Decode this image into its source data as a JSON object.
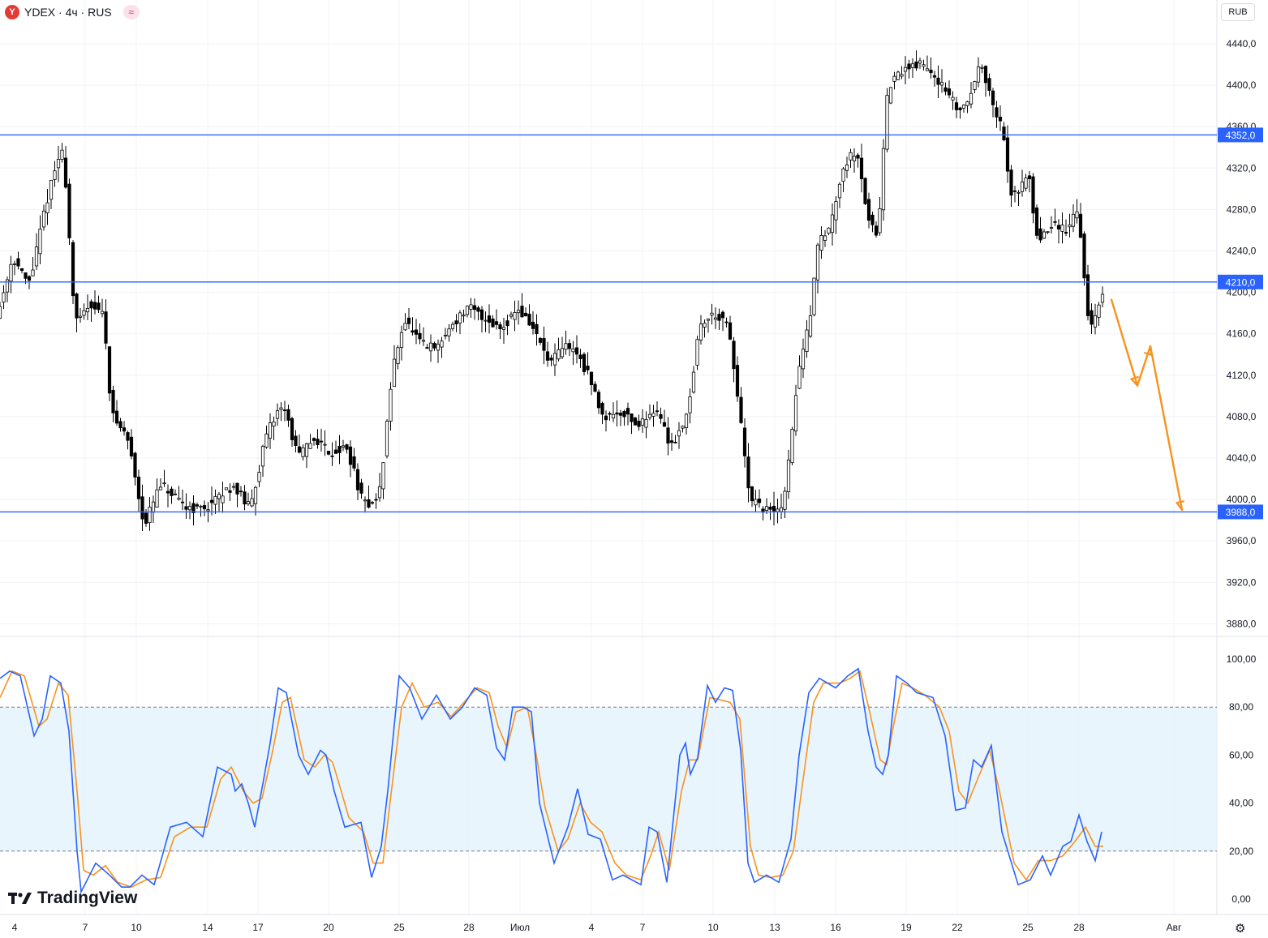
{
  "header": {
    "symbol_icon": "Y",
    "title": "YDEX · 4ч · RUS",
    "badge_icon": "≈"
  },
  "currency_button": "RUB",
  "brand": {
    "logo_icon": "tradingview-logo-icon",
    "name": "TradingView"
  },
  "settings_icon": "⚙",
  "colors": {
    "up": "#ffffff",
    "down": "#000000",
    "level_line": "#2962ff",
    "forecast": "#f7931e",
    "stoch_k": "#2962ff",
    "stoch_d": "#f7931e",
    "band_fill": "#e3f2fd"
  },
  "chart_data": {
    "type": "candlestick",
    "price_axis": {
      "ticks": [
        "4440,0",
        "4400,0",
        "4360,0",
        "4320,0",
        "4280,0",
        "4240,0",
        "4200,0",
        "4160,0",
        "4120,0",
        "4080,0",
        "4040,0",
        "4000,0",
        "3960,0",
        "3920,0",
        "3880,0"
      ],
      "range": [
        3870,
        4470
      ]
    },
    "levels": [
      {
        "price": 4352,
        "label": "4352,0"
      },
      {
        "price": 4210,
        "label": "4210,0"
      },
      {
        "price": 3988,
        "label": "3988,0"
      }
    ],
    "x_labels": [
      "4",
      "7",
      "10",
      "14",
      "17",
      "20",
      "25",
      "28",
      "Июл",
      "4",
      "7",
      "10",
      "13",
      "16",
      "19",
      "22",
      "25",
      "28",
      "Авг"
    ],
    "anchors": [
      [
        0,
        4180
      ],
      [
        18,
        4235
      ],
      [
        38,
        4205
      ],
      [
        60,
        4290
      ],
      [
        80,
        4345
      ],
      [
        95,
        4165
      ],
      [
        112,
        4190
      ],
      [
        130,
        4180
      ],
      [
        140,
        4080
      ],
      [
        160,
        4060
      ],
      [
        180,
        3975
      ],
      [
        200,
        4015
      ],
      [
        225,
        3995
      ],
      [
        250,
        3990
      ],
      [
        270,
        4000
      ],
      [
        290,
        4015
      ],
      [
        310,
        3990
      ],
      [
        330,
        4060
      ],
      [
        350,
        4095
      ],
      [
        370,
        4040
      ],
      [
        390,
        4060
      ],
      [
        410,
        4045
      ],
      [
        430,
        4050
      ],
      [
        450,
        3995
      ],
      [
        470,
        4000
      ],
      [
        485,
        4120
      ],
      [
        500,
        4175
      ],
      [
        520,
        4150
      ],
      [
        540,
        4145
      ],
      [
        560,
        4170
      ],
      [
        580,
        4185
      ],
      [
        600,
        4175
      ],
      [
        620,
        4165
      ],
      [
        640,
        4185
      ],
      [
        660,
        4165
      ],
      [
        680,
        4130
      ],
      [
        700,
        4150
      ],
      [
        715,
        4140
      ],
      [
        730,
        4115
      ],
      [
        745,
        4080
      ],
      [
        770,
        4085
      ],
      [
        790,
        4070
      ],
      [
        810,
        4090
      ],
      [
        830,
        4050
      ],
      [
        850,
        4085
      ],
      [
        865,
        4170
      ],
      [
        885,
        4180
      ],
      [
        900,
        4165
      ],
      [
        915,
        4080
      ],
      [
        925,
        4000
      ],
      [
        945,
        3990
      ],
      [
        965,
        3988
      ],
      [
        975,
        4035
      ],
      [
        985,
        4120
      ],
      [
        1000,
        4170
      ],
      [
        1010,
        4250
      ],
      [
        1025,
        4260
      ],
      [
        1040,
        4320
      ],
      [
        1060,
        4340
      ],
      [
        1070,
        4275
      ],
      [
        1085,
        4255
      ],
      [
        1095,
        4395
      ],
      [
        1110,
        4410
      ],
      [
        1125,
        4420
      ],
      [
        1140,
        4420
      ],
      [
        1155,
        4410
      ],
      [
        1170,
        4390
      ],
      [
        1185,
        4375
      ],
      [
        1200,
        4390
      ],
      [
        1210,
        4430
      ],
      [
        1225,
        4380
      ],
      [
        1240,
        4355
      ],
      [
        1245,
        4295
      ],
      [
        1260,
        4300
      ],
      [
        1270,
        4320
      ],
      [
        1280,
        4250
      ],
      [
        1300,
        4265
      ],
      [
        1320,
        4260
      ],
      [
        1330,
        4290
      ],
      [
        1338,
        4225
      ],
      [
        1343,
        4165
      ],
      [
        1352,
        4175
      ],
      [
        1360,
        4195
      ]
    ],
    "forecast_path": [
      [
        1370,
        4193
      ],
      [
        1402,
        4110
      ],
      [
        1418,
        4148
      ],
      [
        1457,
        3990
      ]
    ],
    "stochastic": {
      "axis_ticks": [
        "100,00",
        "80,00",
        "60,00",
        "40,00",
        "20,00",
        "0,00"
      ],
      "overbought": 80,
      "oversold": 20,
      "k": [
        [
          0,
          92
        ],
        [
          12,
          95
        ],
        [
          25,
          93
        ],
        [
          42,
          68
        ],
        [
          52,
          75
        ],
        [
          62,
          93
        ],
        [
          75,
          90
        ],
        [
          85,
          70
        ],
        [
          95,
          20
        ],
        [
          100,
          3
        ],
        [
          118,
          15
        ],
        [
          135,
          10
        ],
        [
          150,
          5
        ],
        [
          160,
          5
        ],
        [
          175,
          10
        ],
        [
          190,
          6
        ],
        [
          210,
          30
        ],
        [
          230,
          32
        ],
        [
          250,
          26
        ],
        [
          268,
          55
        ],
        [
          285,
          52
        ],
        [
          290,
          45
        ],
        [
          298,
          48
        ],
        [
          306,
          40
        ],
        [
          314,
          30
        ],
        [
          324,
          48
        ],
        [
          333,
          65
        ],
        [
          343,
          88
        ],
        [
          353,
          86
        ],
        [
          368,
          60
        ],
        [
          380,
          52
        ],
        [
          395,
          62
        ],
        [
          402,
          60
        ],
        [
          412,
          45
        ],
        [
          425,
          30
        ],
        [
          445,
          32
        ],
        [
          458,
          9
        ],
        [
          470,
          22
        ],
        [
          478,
          45
        ],
        [
          492,
          93
        ],
        [
          505,
          88
        ],
        [
          520,
          75
        ],
        [
          538,
          85
        ],
        [
          555,
          75
        ],
        [
          570,
          80
        ],
        [
          585,
          88
        ],
        [
          600,
          85
        ],
        [
          612,
          63
        ],
        [
          622,
          58
        ],
        [
          632,
          80
        ],
        [
          645,
          80
        ],
        [
          655,
          78
        ],
        [
          665,
          40
        ],
        [
          683,
          15
        ],
        [
          700,
          30
        ],
        [
          712,
          46
        ],
        [
          725,
          27
        ],
        [
          740,
          25
        ],
        [
          755,
          8
        ],
        [
          768,
          10
        ],
        [
          790,
          6
        ],
        [
          800,
          30
        ],
        [
          810,
          28
        ],
        [
          822,
          7
        ],
        [
          838,
          60
        ],
        [
          845,
          65
        ],
        [
          851,
          52
        ],
        [
          860,
          59
        ],
        [
          872,
          89
        ],
        [
          882,
          82
        ],
        [
          893,
          88
        ],
        [
          903,
          87
        ],
        [
          913,
          62
        ],
        [
          922,
          15
        ],
        [
          930,
          7
        ],
        [
          945,
          10
        ],
        [
          960,
          7
        ],
        [
          975,
          25
        ],
        [
          985,
          60
        ],
        [
          997,
          86
        ],
        [
          1010,
          92
        ],
        [
          1030,
          88
        ],
        [
          1045,
          93
        ],
        [
          1058,
          96
        ],
        [
          1070,
          70
        ],
        [
          1080,
          55
        ],
        [
          1088,
          52
        ],
        [
          1095,
          60
        ],
        [
          1105,
          93
        ],
        [
          1118,
          90
        ],
        [
          1130,
          86
        ],
        [
          1150,
          84
        ],
        [
          1165,
          68
        ],
        [
          1178,
          37
        ],
        [
          1190,
          38
        ],
        [
          1200,
          58
        ],
        [
          1210,
          55
        ],
        [
          1222,
          64
        ],
        [
          1235,
          28
        ],
        [
          1255,
          6
        ],
        [
          1270,
          8
        ],
        [
          1285,
          18
        ],
        [
          1295,
          10
        ],
        [
          1310,
          22
        ],
        [
          1320,
          24
        ],
        [
          1330,
          35
        ],
        [
          1340,
          24
        ],
        [
          1350,
          16
        ],
        [
          1358,
          28
        ]
      ],
      "d": [
        [
          0,
          84
        ],
        [
          15,
          95
        ],
        [
          30,
          93
        ],
        [
          48,
          72
        ],
        [
          58,
          75
        ],
        [
          72,
          90
        ],
        [
          84,
          85
        ],
        [
          95,
          45
        ],
        [
          103,
          12
        ],
        [
          115,
          10
        ],
        [
          130,
          14
        ],
        [
          145,
          7
        ],
        [
          162,
          5
        ],
        [
          180,
          8
        ],
        [
          198,
          9
        ],
        [
          215,
          26
        ],
        [
          235,
          30
        ],
        [
          255,
          30
        ],
        [
          272,
          50
        ],
        [
          285,
          55
        ],
        [
          300,
          45
        ],
        [
          312,
          40
        ],
        [
          323,
          42
        ],
        [
          335,
          60
        ],
        [
          348,
          82
        ],
        [
          358,
          84
        ],
        [
          375,
          58
        ],
        [
          388,
          55
        ],
        [
          400,
          60
        ],
        [
          410,
          57
        ],
        [
          418,
          48
        ],
        [
          430,
          34
        ],
        [
          448,
          28
        ],
        [
          460,
          15
        ],
        [
          472,
          15
        ],
        [
          480,
          38
        ],
        [
          495,
          80
        ],
        [
          508,
          90
        ],
        [
          523,
          80
        ],
        [
          540,
          82
        ],
        [
          556,
          76
        ],
        [
          572,
          82
        ],
        [
          588,
          88
        ],
        [
          603,
          86
        ],
        [
          614,
          72
        ],
        [
          625,
          63
        ],
        [
          636,
          78
        ],
        [
          650,
          80
        ],
        [
          660,
          62
        ],
        [
          672,
          38
        ],
        [
          688,
          20
        ],
        [
          700,
          25
        ],
        [
          715,
          40
        ],
        [
          728,
          32
        ],
        [
          742,
          28
        ],
        [
          758,
          15
        ],
        [
          772,
          10
        ],
        [
          790,
          8
        ],
        [
          802,
          18
        ],
        [
          812,
          28
        ],
        [
          825,
          12
        ],
        [
          840,
          45
        ],
        [
          850,
          58
        ],
        [
          860,
          58
        ],
        [
          875,
          84
        ],
        [
          888,
          83
        ],
        [
          900,
          82
        ],
        [
          912,
          75
        ],
        [
          925,
          22
        ],
        [
          935,
          10
        ],
        [
          950,
          9
        ],
        [
          965,
          10
        ],
        [
          978,
          20
        ],
        [
          990,
          50
        ],
        [
          1003,
          82
        ],
        [
          1015,
          90
        ],
        [
          1035,
          90
        ],
        [
          1048,
          92
        ],
        [
          1060,
          95
        ],
        [
          1072,
          78
        ],
        [
          1085,
          58
        ],
        [
          1093,
          56
        ],
        [
          1100,
          70
        ],
        [
          1112,
          90
        ],
        [
          1125,
          88
        ],
        [
          1140,
          85
        ],
        [
          1158,
          80
        ],
        [
          1170,
          70
        ],
        [
          1182,
          45
        ],
        [
          1193,
          40
        ],
        [
          1205,
          50
        ],
        [
          1220,
          62
        ],
        [
          1232,
          45
        ],
        [
          1250,
          15
        ],
        [
          1265,
          8
        ],
        [
          1280,
          16
        ],
        [
          1295,
          16
        ],
        [
          1310,
          18
        ],
        [
          1325,
          24
        ],
        [
          1338,
          30
        ],
        [
          1350,
          22
        ],
        [
          1360,
          22
        ]
      ]
    }
  }
}
